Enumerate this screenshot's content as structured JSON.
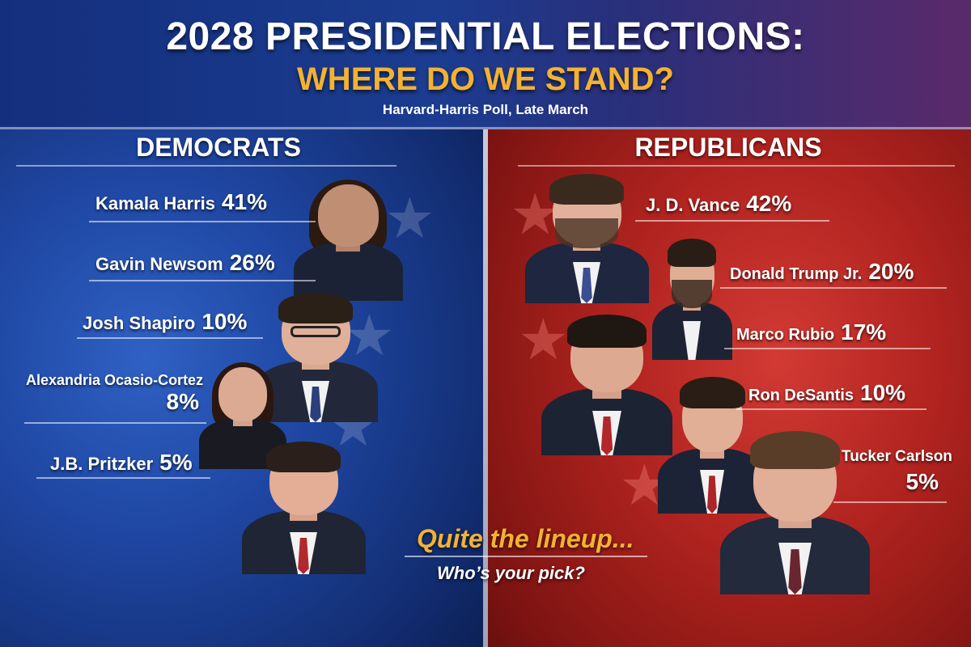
{
  "header": {
    "title": "2028 PRESIDENTIAL ELECTIONS:",
    "subtitle": "WHERE DO WE STAND?",
    "source": "Harvard-Harris Poll, Late March"
  },
  "colors": {
    "accent": "#f2b232",
    "democrats": "#1f47a3",
    "republicans": "#b0231f"
  },
  "democrats": {
    "label": "DEMOCRATS",
    "candidates": [
      {
        "name": "Kamala Harris",
        "percent": "41%"
      },
      {
        "name": "Gavin Newsom",
        "percent": "26%"
      },
      {
        "name": "Josh Shapiro",
        "percent": "10%"
      },
      {
        "name": "Alexandria Ocasio-Cortez",
        "percent": "8%"
      },
      {
        "name": "J.B. Pritzker",
        "percent": "5%"
      }
    ]
  },
  "republicans": {
    "label": "REPUBLICANS",
    "candidates": [
      {
        "name": "J. D. Vance",
        "percent": "42%"
      },
      {
        "name": "Donald Trump Jr.",
        "percent": "20%"
      },
      {
        "name": "Marco Rubio",
        "percent": "17%"
      },
      {
        "name": "Ron DeSantis",
        "percent": "10%"
      },
      {
        "name": "Tucker Carlson",
        "percent": "5%"
      }
    ]
  },
  "footer": {
    "tagline": "Quite the lineup...",
    "question": "Who’s your pick?"
  },
  "icons": [
    "star-icon"
  ]
}
